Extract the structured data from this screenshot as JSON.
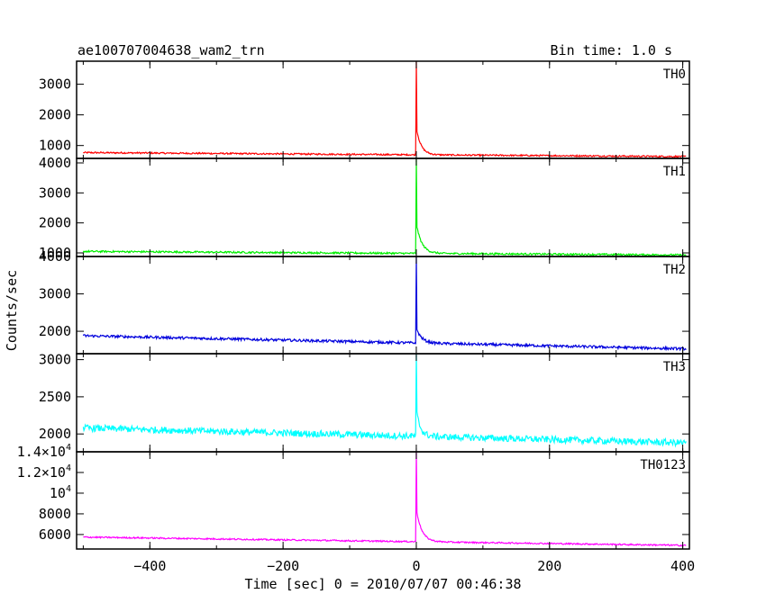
{
  "chart_data": {
    "type": "line",
    "title_left": "ae100707004638_wam2_trn",
    "title_right": "Bin time: 1.0 s",
    "xlabel": "Time [sec] 0 = 2010/07/07 00:46:38",
    "ylabel": "Counts/sec",
    "xlim": [
      -510,
      410
    ],
    "x_ticks": [
      -400,
      -200,
      0,
      200,
      400
    ],
    "x_tick_labels": [
      "−400",
      "−200",
      "0",
      "200",
      "400"
    ],
    "panels": [
      {
        "name": "TH0",
        "color": "#ff0000",
        "ylim": [
          580,
          3750
        ],
        "y_ticks": [
          1000,
          2000,
          3000
        ],
        "y_tick_labels": [
          "1000",
          "2000",
          "3000"
        ],
        "baseline_start": 770,
        "baseline_end": 640,
        "noise": 25,
        "peak": 3750,
        "tail_height": 900,
        "tail_tau": 7
      },
      {
        "name": "TH1",
        "color": "#00ee00",
        "ylim": [
          880,
          4150
        ],
        "y_ticks": [
          1000,
          2000,
          3000,
          4000
        ],
        "y_tick_labels": [
          "1000",
          "2000",
          "3000",
          "4000"
        ],
        "baseline_start": 1050,
        "baseline_end": 930,
        "noise": 30,
        "peak": 4150,
        "tail_height": 1000,
        "tail_tau": 8
      },
      {
        "name": "TH2",
        "color": "#0000dd",
        "ylim": [
          1400,
          4000
        ],
        "y_ticks": [
          2000,
          3000,
          4000
        ],
        "y_tick_labels": [
          "2000",
          "3000",
          "4000"
        ],
        "baseline_start": 1880,
        "baseline_end": 1530,
        "noise": 35,
        "peak": 4000,
        "tail_height": 400,
        "tail_tau": 8
      },
      {
        "name": "TH3",
        "color": "#00ffff",
        "ylim": [
          1760,
          3080
        ],
        "y_ticks": [
          2000,
          2500,
          3000
        ],
        "y_tick_labels": [
          "2000",
          "2500",
          "3000"
        ],
        "baseline_start": 2080,
        "baseline_end": 1880,
        "noise": 45,
        "peak": 3080,
        "tail_height": 350,
        "tail_tau": 6
      },
      {
        "name": "TH0123",
        "color": "#ff00ff",
        "ylim": [
          4600,
          14000
        ],
        "y_ticks": [
          6000,
          8000,
          10000,
          12000,
          14000
        ],
        "y_tick_labels": [
          {
            "base": "6000"
          },
          {
            "base": "8000"
          },
          {
            "base": "10",
            "exp": "4"
          },
          {
            "base": "1.2×10",
            "exp": "4"
          },
          {
            "base": "1.4×10",
            "exp": "4"
          }
        ],
        "baseline_start": 5750,
        "baseline_end": 4950,
        "noise": 70,
        "peak": 14000,
        "tail_height": 3200,
        "tail_tau": 8
      }
    ]
  }
}
